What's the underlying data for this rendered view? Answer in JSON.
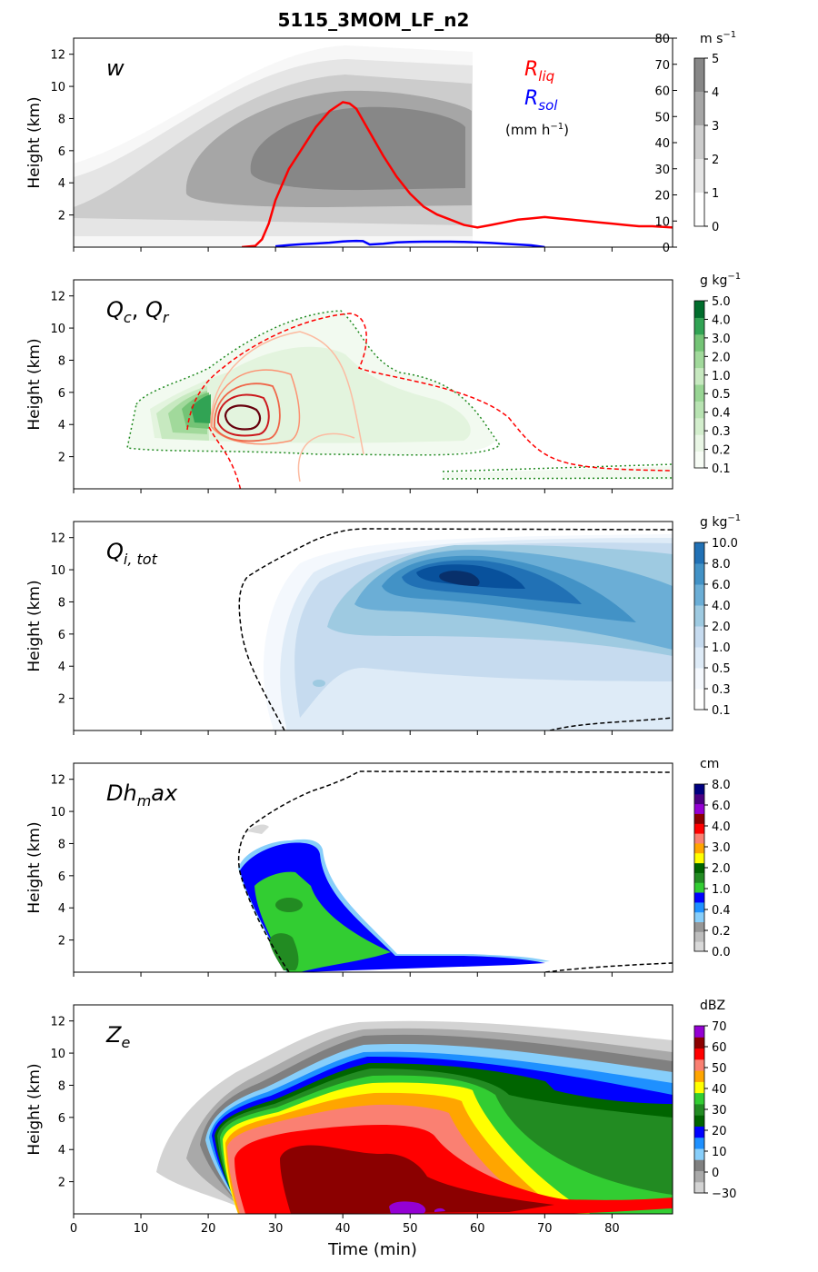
{
  "title": "5115_3MOM_LF_n2",
  "xlabel": "Time (min)",
  "ylabel": "Height (km)",
  "x_ticks": [
    "0",
    "10",
    "20",
    "30",
    "40",
    "50",
    "60",
    "70",
    "80"
  ],
  "y_ticks": [
    "2",
    "4",
    "6",
    "8",
    "10",
    "12"
  ],
  "colors": {
    "rliq": "#ff0000",
    "rsol": "#0000ff",
    "grays": [
      "#f7f7f7",
      "#e5e5e5",
      "#cccccc",
      "#a6a6a6",
      "#878787"
    ],
    "greens": [
      "#f2faf0",
      "#e3f4de",
      "#c7e9c0",
      "#a1d99b",
      "#74c476",
      "#31a354",
      "#006d2c"
    ],
    "reds": [
      "#fcbba1",
      "#fc9272",
      "#ef6548",
      "#cb181d",
      "#67000d"
    ],
    "blues": [
      "#f4f8fd",
      "#deebf7",
      "#c6dbef",
      "#9ecae1",
      "#6baed6",
      "#4292c6",
      "#2171b5",
      "#08519c",
      "#08306b"
    ]
  },
  "chart_data": [
    {
      "type": "heatmap",
      "panel_label": "w",
      "colorbar_unit": "m s",
      "colorbar_unit_sup": "−1",
      "colorbar_ticks": [
        "0",
        "1",
        "2",
        "3",
        "4",
        "5"
      ],
      "right_axis_ticks": [
        "0",
        "10",
        "20",
        "30",
        "40",
        "50",
        "60",
        "70",
        "80"
      ],
      "right_axis_ylim": [
        0,
        80
      ],
      "legend": {
        "rliq_base": "R",
        "rliq_sub": "liq",
        "rsol_base": "R",
        "rsol_sub": "sol",
        "units_a": "(mm h",
        "units_sup": "−1",
        "units_b": ")"
      },
      "xlim": [
        0,
        89
      ],
      "ylim": [
        0,
        13
      ],
      "series": [
        {
          "name": "R_liq",
          "x": [
            25,
            27,
            28,
            29,
            30,
            32,
            34,
            36,
            38,
            40,
            41,
            42,
            44,
            46,
            48,
            50,
            52,
            54,
            56,
            58,
            60,
            62,
            64,
            66,
            68,
            70,
            72,
            74,
            76,
            78,
            80,
            82,
            84,
            86,
            89
          ],
          "y": [
            0,
            0.5,
            3,
            9,
            18,
            30,
            38,
            46,
            52,
            55.5,
            55,
            53,
            44,
            35,
            27,
            20.5,
            15.5,
            12.5,
            10.5,
            8.5,
            7.5,
            8.5,
            9.5,
            10.5,
            11,
            11.5,
            11,
            10.5,
            10,
            9.5,
            9,
            8.5,
            8,
            8,
            7.5
          ]
        },
        {
          "name": "R_sol",
          "x": [
            30,
            32,
            34,
            36,
            38,
            40,
            42,
            43,
            44,
            46,
            48,
            50,
            52,
            54,
            56,
            58,
            60,
            62,
            64,
            66,
            68,
            70
          ],
          "y": [
            0.3,
            0.8,
            1.1,
            1.4,
            1.7,
            2.2,
            2.4,
            2.3,
            1,
            1.3,
            1.8,
            2,
            2.1,
            2.1,
            2.1,
            2,
            1.8,
            1.6,
            1.3,
            1,
            0.7,
            0
          ]
        }
      ]
    },
    {
      "type": "heatmap",
      "panel_label_a": "Q",
      "panel_label_a_sub": "c",
      "panel_label_sep": ", ",
      "panel_label_b": "Q",
      "panel_label_b_sub": "r",
      "colorbar_unit": "g kg",
      "colorbar_unit_sup": "−1",
      "colorbar_ticks": [
        "0.1",
        "0.2",
        "0.3",
        "0.4",
        "0.5",
        "1.0",
        "2.0",
        "3.0",
        "4.0",
        "5.0"
      ],
      "xlim": [
        0,
        89
      ],
      "ylim": [
        0,
        13
      ]
    },
    {
      "type": "heatmap",
      "panel_label": "Q",
      "panel_label_sub": "i, tot",
      "colorbar_unit": "g kg",
      "colorbar_unit_sup": "−1",
      "colorbar_ticks": [
        "0.1",
        "0.3",
        "0.5",
        "1.0",
        "2.0",
        "4.0",
        "6.0",
        "8.0",
        "10.0"
      ],
      "xlim": [
        0,
        89
      ],
      "ylim": [
        0,
        13
      ]
    },
    {
      "type": "heatmap",
      "panel_label": "Dh",
      "panel_label_sub": "m",
      "panel_label_tail": "ax",
      "colorbar_unit": "cm",
      "colorbar_ticks": [
        "0.0",
        "0.2",
        "0.4",
        "1.0",
        "2.0",
        "3.0",
        "4.0",
        "6.0",
        "8.0"
      ],
      "colorbar_colors": [
        "#d9d9d9",
        "#bdbdbd",
        "#969696",
        "#87cefa",
        "#1e90ff",
        "#0000ff",
        "#32cd32",
        "#228b22",
        "#006400",
        "#ffff00",
        "#ffa500",
        "#fa8072",
        "#ff0000",
        "#8b0000",
        "#9400d3",
        "#4b0082",
        "#000080"
      ],
      "xlim": [
        0,
        89
      ],
      "ylim": [
        0,
        13
      ]
    },
    {
      "type": "heatmap",
      "panel_label": "Z",
      "panel_label_sub": "e",
      "colorbar_unit": "dBZ",
      "colorbar_ticks": [
        "−30",
        "0",
        "10",
        "20",
        "30",
        "40",
        "50",
        "60",
        "70"
      ],
      "colorbar_colors": [
        "#d3d3d3",
        "#a9a9a9",
        "#808080",
        "#87cefa",
        "#1e90ff",
        "#0000ff",
        "#006400",
        "#228b22",
        "#32cd32",
        "#ffff00",
        "#ffa500",
        "#fa8072",
        "#ff0000",
        "#8b0000",
        "#9400d3"
      ],
      "xlim": [
        0,
        89
      ],
      "ylim": [
        0,
        13
      ]
    }
  ]
}
